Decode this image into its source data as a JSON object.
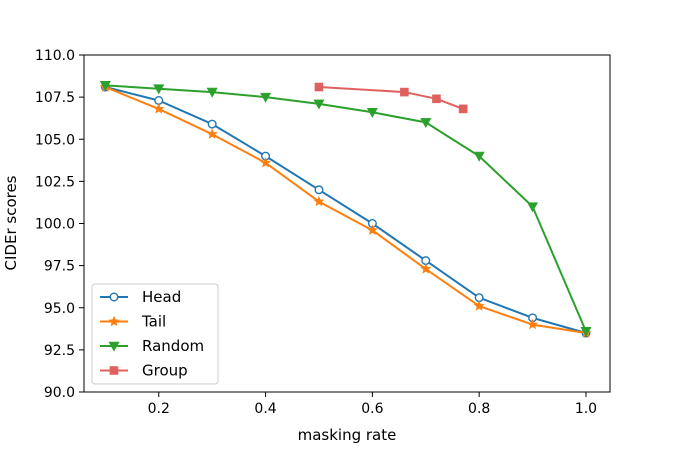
{
  "chart_data": {
    "type": "line",
    "title": "",
    "xlabel": "masking rate",
    "ylabel": "CIDEr scores",
    "xlim": [
      0.06,
      1.045
    ],
    "ylim": [
      90.0,
      110.0
    ],
    "xticks": [
      0.2,
      0.4,
      0.6,
      0.8,
      1.0
    ],
    "xtick_labels": [
      "0.2",
      "0.4",
      "0.6",
      "0.8",
      "1.0"
    ],
    "yticks": [
      90.0,
      92.5,
      95.0,
      97.5,
      100.0,
      102.5,
      105.0,
      107.5,
      110.0
    ],
    "ytick_labels": [
      "90.0",
      "92.5",
      "95.0",
      "97.5",
      "100.0",
      "102.5",
      "105.0",
      "107.5",
      "110.0"
    ],
    "grid": false,
    "legend_position": "lower-left",
    "series": [
      {
        "name": "Head",
        "color": "#1f77b4",
        "marker": "circle-open",
        "x": [
          0.1,
          0.2,
          0.3,
          0.4,
          0.5,
          0.6,
          0.7,
          0.8,
          0.9,
          1.0
        ],
        "values": [
          108.1,
          107.3,
          105.9,
          104.0,
          102.0,
          100.0,
          97.8,
          95.6,
          94.4,
          93.5
        ]
      },
      {
        "name": "Tail",
        "color": "#ff7f0e",
        "marker": "star",
        "x": [
          0.1,
          0.2,
          0.3,
          0.4,
          0.5,
          0.6,
          0.7,
          0.8,
          0.9,
          1.0
        ],
        "values": [
          108.1,
          106.8,
          105.3,
          103.6,
          101.3,
          99.6,
          97.3,
          95.1,
          94.0,
          93.5
        ]
      },
      {
        "name": "Random",
        "color": "#2ca02c",
        "marker": "triangle-down",
        "x": [
          0.1,
          0.2,
          0.3,
          0.4,
          0.5,
          0.6,
          0.7,
          0.8,
          0.9,
          1.0
        ],
        "values": [
          108.2,
          108.0,
          107.8,
          107.5,
          107.1,
          106.6,
          106.0,
          104.0,
          101.0,
          93.6
        ]
      },
      {
        "name": "Group",
        "color": "#e06060",
        "marker": "square",
        "x": [
          0.5,
          0.66,
          0.72,
          0.77
        ],
        "values": [
          108.1,
          107.8,
          107.4,
          106.8
        ]
      }
    ]
  }
}
